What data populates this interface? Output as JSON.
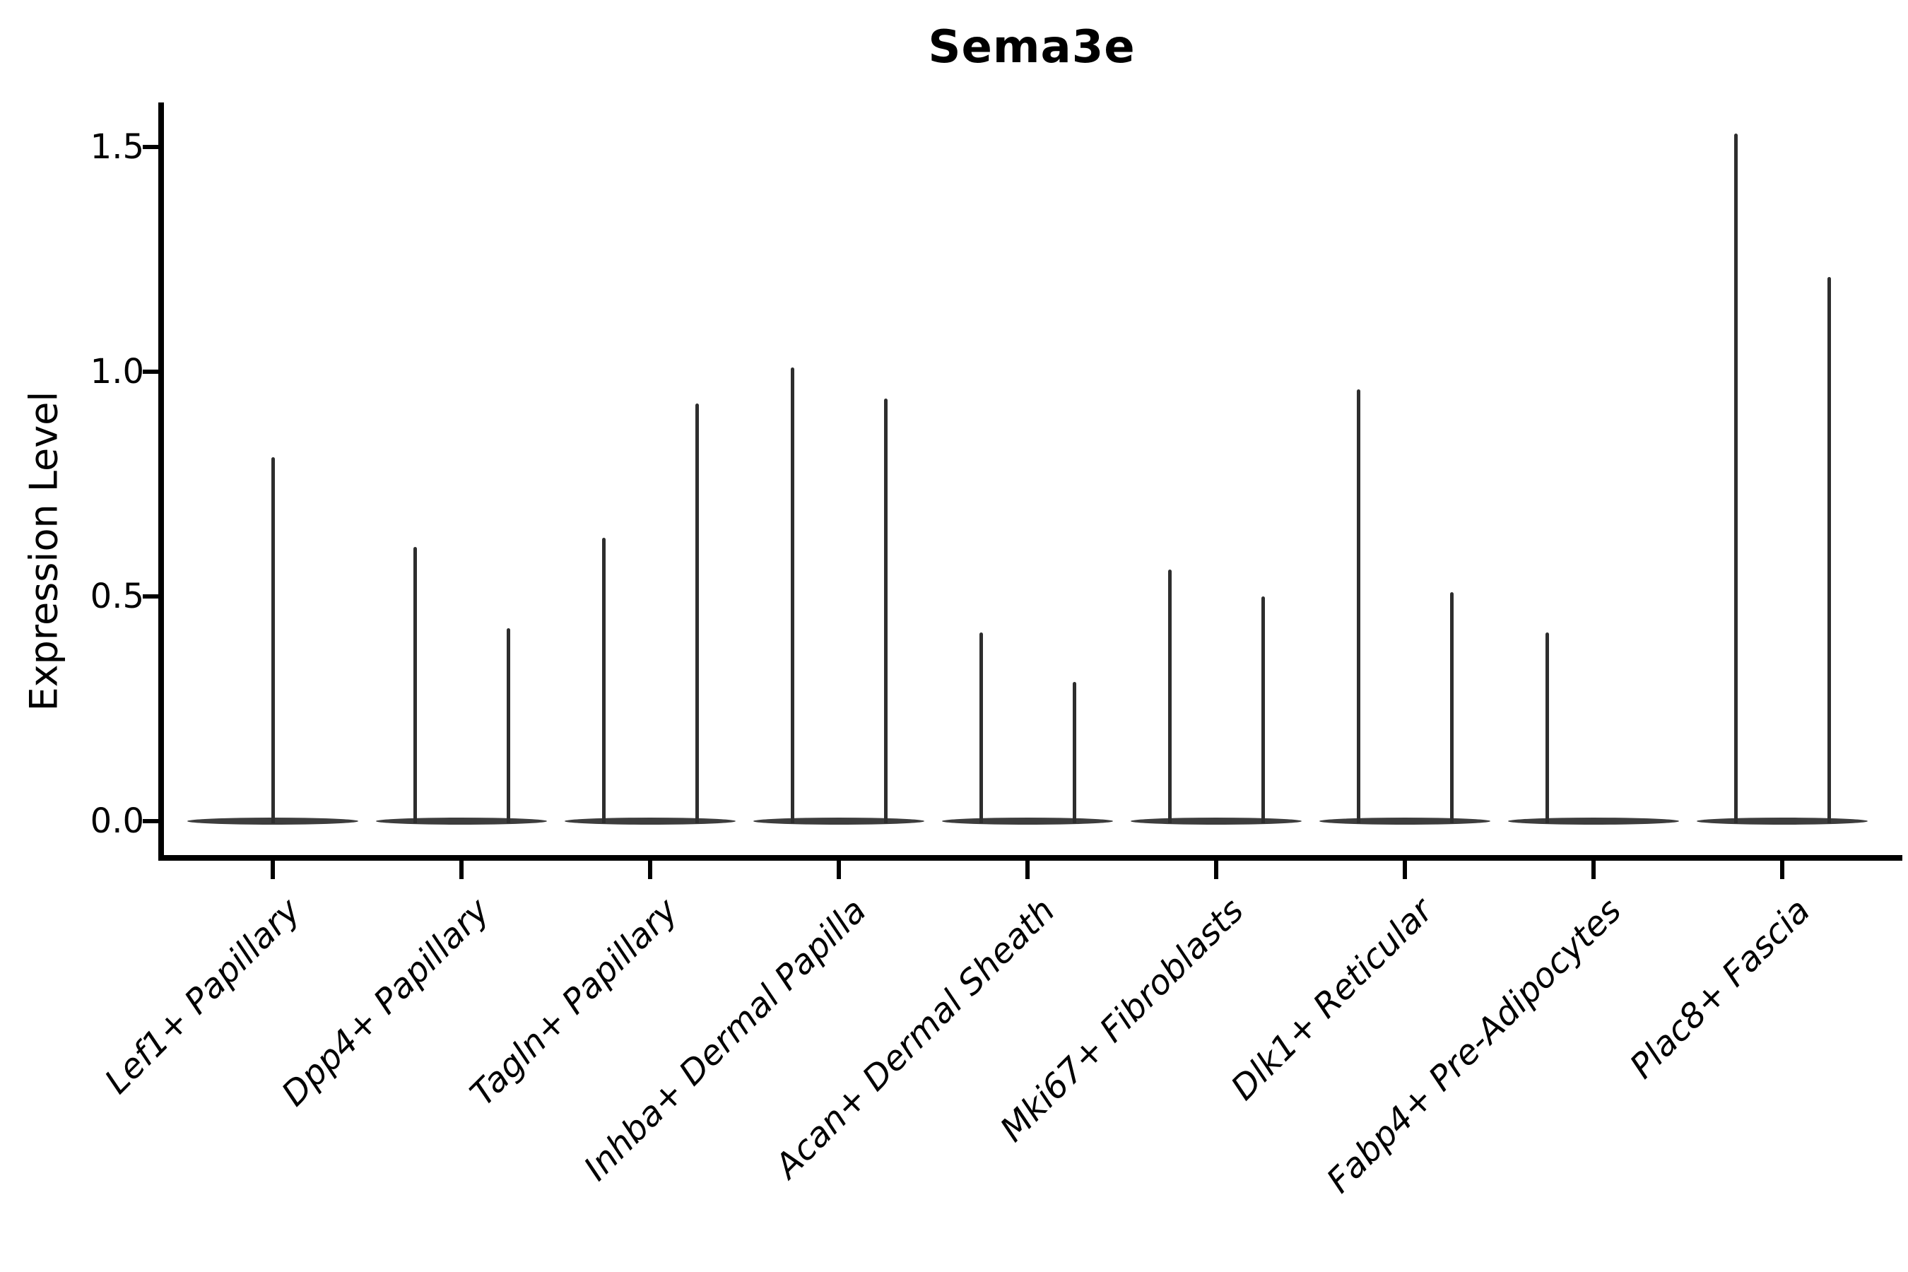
{
  "figure": {
    "title": "Sema3e",
    "y_axis_label": "Expression Level",
    "background_color": "#ffffff",
    "axis_color": "#000000",
    "violin_color": "#2e2e2e",
    "violin_base_color": "#3d3d3d"
  },
  "chart_data": {
    "type": "violin",
    "title": "Sema3e",
    "xlabel": "",
    "ylabel": "Expression Level",
    "grid": false,
    "legend": "none",
    "ylim": [
      -0.075,
      1.6
    ],
    "yticks": [
      {
        "label": "0.0",
        "value": 0.0
      },
      {
        "label": "0.5",
        "value": 0.5
      },
      {
        "label": "1.0",
        "value": 1.0
      },
      {
        "label": "1.5",
        "value": 1.5
      }
    ],
    "categories": [
      "Lef1+ Papillary",
      "Dpp4+ Papillary",
      "Tagln+ Papillary",
      "Inhba+ Dermal Papilla",
      "Acan+ Dermal Sheath",
      "Mki67+ Fibroblasts",
      "Dlk1+ Reticular",
      "Fabp4+ Pre-Adipocytes",
      "Plac8+ Fascia"
    ],
    "series": [
      {
        "category": "Lef1+ Papillary",
        "violins": [
          {
            "slot": "center",
            "max_expression": 0.81
          }
        ]
      },
      {
        "category": "Dpp4+ Papillary",
        "violins": [
          {
            "slot": "left",
            "max_expression": 0.61
          },
          {
            "slot": "right",
            "max_expression": 0.43
          }
        ]
      },
      {
        "category": "Tagln+ Papillary",
        "violins": [
          {
            "slot": "left",
            "max_expression": 0.63
          },
          {
            "slot": "right",
            "max_expression": 0.93
          }
        ]
      },
      {
        "category": "Inhba+ Dermal Papilla",
        "violins": [
          {
            "slot": "left",
            "max_expression": 1.01
          },
          {
            "slot": "right",
            "max_expression": 0.94
          }
        ]
      },
      {
        "category": "Acan+ Dermal Sheath",
        "violins": [
          {
            "slot": "left",
            "max_expression": 0.42
          },
          {
            "slot": "right",
            "max_expression": 0.31
          }
        ]
      },
      {
        "category": "Mki67+ Fibroblasts",
        "violins": [
          {
            "slot": "left",
            "max_expression": 0.56
          },
          {
            "slot": "right",
            "max_expression": 0.5
          }
        ]
      },
      {
        "category": "Dlk1+ Reticular",
        "violins": [
          {
            "slot": "left",
            "max_expression": 0.96
          },
          {
            "slot": "right",
            "max_expression": 0.51
          }
        ]
      },
      {
        "category": "Fabp4+ Pre-Adipocytes",
        "violins": [
          {
            "slot": "left",
            "max_expression": 0.42
          }
        ]
      },
      {
        "category": "Plac8+ Fascia",
        "violins": [
          {
            "slot": "left",
            "max_expression": 1.53
          },
          {
            "slot": "right",
            "max_expression": 1.21
          }
        ]
      }
    ],
    "distribution_note": "Nearly all cells sit at expression 0, drawn as flat violin bases along the baseline; thin density spikes rise to each listed maximum."
  }
}
